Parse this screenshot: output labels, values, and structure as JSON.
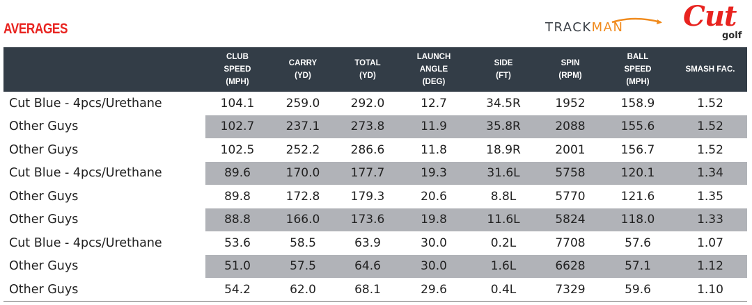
{
  "title": "AVERAGES",
  "logos": {
    "trackman": {
      "text_a": "TRACK",
      "text_b": "MAN",
      "accent_color": "#f08a1c"
    },
    "cut": {
      "text": "Cut",
      "sub": "golf",
      "color": "#e8231f"
    }
  },
  "colors": {
    "header_bg": "#333d47",
    "alt_row_bg": "#b1b3b8",
    "title_red": "#e8231f"
  },
  "table": {
    "columns": [
      "",
      "CLUB\nSPEED\n(MPH)",
      "CARRY\n(YD)",
      "TOTAL\n(YD)",
      "LAUNCH\nANGLE\n(DEG)",
      "SIDE\n(FT)",
      "SPIN\n(RPM)",
      "BALL\nSPEED\n(MPH)",
      "SMASH FAC."
    ],
    "rows": [
      [
        "Cut Blue - 4pcs/Urethane",
        "104.1",
        "259.0",
        "292.0",
        "12.7",
        "34.5R",
        "1952",
        "158.9",
        "1.52"
      ],
      [
        "Other Guys",
        "102.7",
        "237.1",
        "273.8",
        "11.9",
        "35.8R",
        "2088",
        "155.6",
        "1.52"
      ],
      [
        "Other Guys",
        "102.5",
        "252.2",
        "286.6",
        "11.8",
        "18.9R",
        "2001",
        "156.7",
        "1.52"
      ],
      [
        "Cut Blue - 4pcs/Urethane",
        "89.6",
        "170.0",
        "177.7",
        "19.3",
        "31.6L",
        "5758",
        "120.1",
        "1.34"
      ],
      [
        "Other Guys",
        "89.8",
        "172.8",
        "179.3",
        "20.6",
        "8.8L",
        "5770",
        "121.6",
        "1.35"
      ],
      [
        "Other Guys",
        "88.8",
        "166.0",
        "173.6",
        "19.8",
        "11.6L",
        "5824",
        "118.0",
        "1.33"
      ],
      [
        "Cut Blue - 4pcs/Urethane",
        "53.6",
        "58.5",
        "63.9",
        "30.0",
        "0.2L",
        "7708",
        "57.6",
        "1.07"
      ],
      [
        "Other Guys",
        "51.0",
        "57.5",
        "64.6",
        "30.0",
        "1.6L",
        "6628",
        "57.1",
        "1.12"
      ],
      [
        "Other Guys",
        "54.2",
        "62.0",
        "68.1",
        "29.6",
        "0.4L",
        "7329",
        "59.6",
        "1.10"
      ]
    ]
  }
}
